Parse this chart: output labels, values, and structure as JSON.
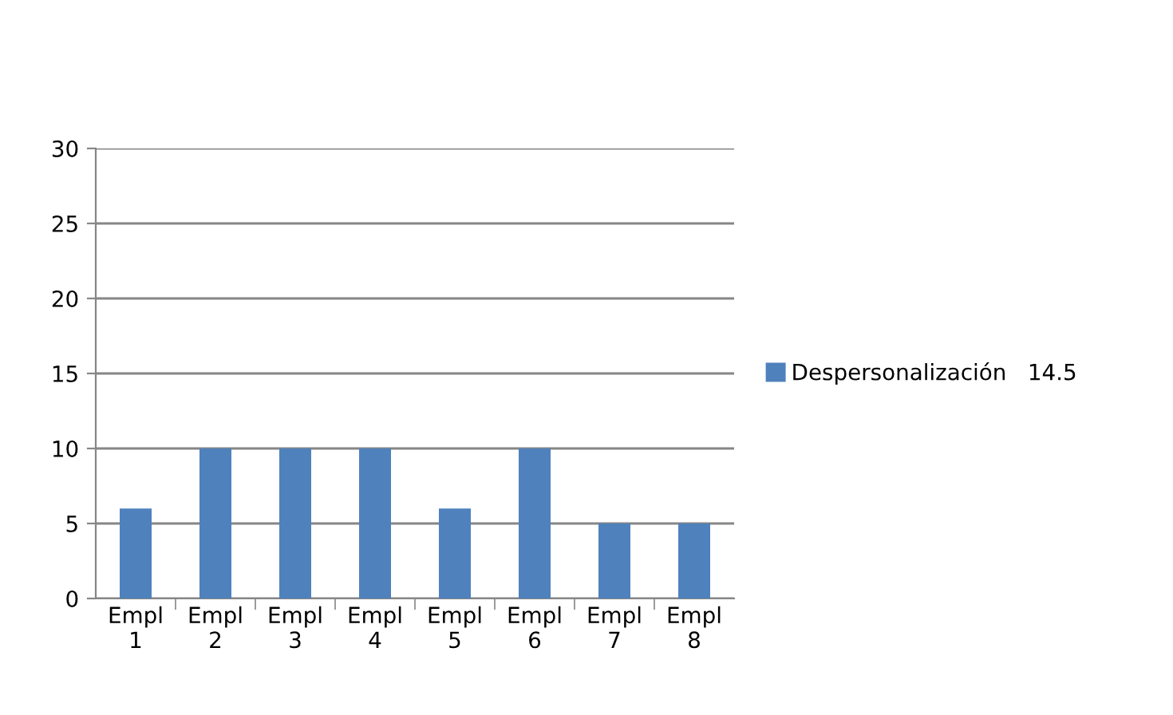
{
  "chart_data": {
    "type": "bar",
    "categories": [
      "Empl\n1",
      "Empl\n2",
      "Empl\n3",
      "Empl\n4",
      "Empl\n5",
      "Empl\n6",
      "Empl\n7",
      "Empl\n8"
    ],
    "series": [
      {
        "name": "Despersonalización   14.5",
        "color": "#4f81bd",
        "values": [
          6,
          10,
          10,
          10,
          6,
          10,
          5,
          5
        ]
      }
    ],
    "ylim": [
      0,
      30
    ],
    "yticks": [
      0,
      5,
      10,
      15,
      20,
      25,
      30
    ],
    "grid": "y",
    "legend": "right"
  }
}
